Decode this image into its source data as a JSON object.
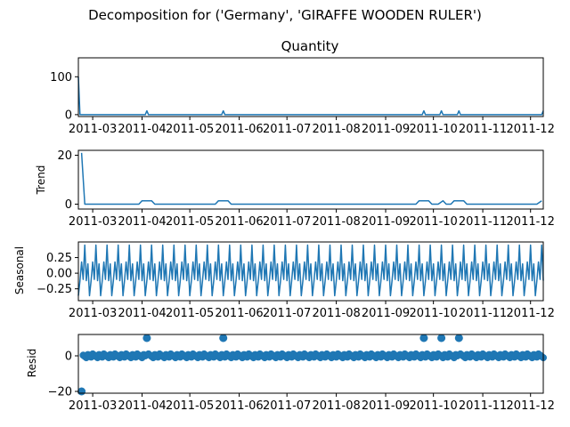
{
  "figure_title": "Decomposition for ('Germany', 'GIRAFFE WOODEN RULER')",
  "line_color": "#1f77b4",
  "x_tick_labels": [
    "2011-03",
    "2011-04",
    "2011-05",
    "2011-06",
    "2011-07",
    "2011-08",
    "2011-09",
    "2011-10",
    "2011-11",
    "2011-12"
  ],
  "chart_data": [
    {
      "type": "line",
      "title": "Quantity",
      "ylabel": "",
      "xlim": [
        "2011-02-20",
        "2011-12-09"
      ],
      "ylim": [
        -5,
        150
      ],
      "yticks": [
        0,
        100
      ],
      "grid": false,
      "series": [
        {
          "x": [
            "2011-02-20",
            "2011-02-21",
            "2011-02-22",
            "2011-04-03",
            "2011-04-04",
            "2011-04-05",
            "2011-05-21",
            "2011-05-22",
            "2011-05-23",
            "2011-09-24",
            "2011-09-25",
            "2011-09-26",
            "2011-10-05",
            "2011-10-06",
            "2011-10-07",
            "2011-10-16",
            "2011-10-17",
            "2011-10-18",
            "2011-12-08",
            "2011-12-09"
          ],
          "y": [
            100,
            0,
            0,
            0,
            10,
            0,
            0,
            10,
            0,
            0,
            10,
            0,
            0,
            10,
            0,
            0,
            10,
            0,
            0,
            10
          ]
        }
      ]
    },
    {
      "type": "line",
      "title": "",
      "ylabel": "Trend",
      "xlim": [
        "2011-02-20",
        "2011-12-09"
      ],
      "ylim": [
        -2,
        22
      ],
      "yticks": [
        0,
        20
      ],
      "grid": false,
      "series": [
        {
          "x": [
            "2011-02-22",
            "2011-02-24",
            "2011-03-30",
            "2011-04-01",
            "2011-04-07",
            "2011-04-09",
            "2011-05-17",
            "2011-05-19",
            "2011-05-25",
            "2011-05-27",
            "2011-09-20",
            "2011-09-22",
            "2011-09-28",
            "2011-09-30",
            "2011-10-04",
            "2011-10-07",
            "2011-10-09",
            "2011-10-12",
            "2011-10-14",
            "2011-10-20",
            "2011-10-22",
            "2011-12-05",
            "2011-12-08"
          ],
          "y": [
            21,
            0,
            0,
            1.4,
            1.4,
            0,
            0,
            1.4,
            1.4,
            0,
            0,
            1.4,
            1.4,
            0,
            0,
            1.4,
            0,
            0,
            1.4,
            1.4,
            0,
            0,
            1.4
          ]
        }
      ]
    },
    {
      "type": "line",
      "title": "",
      "ylabel": "Seasonal",
      "xlim": [
        "2011-02-20",
        "2011-12-09"
      ],
      "ylim": [
        -0.44,
        0.5
      ],
      "yticks": [
        0.25,
        0.0,
        -0.25
      ],
      "ytick_labels": [
        "0.25",
        "0.00",
        "−0.25"
      ],
      "grid": false,
      "period_days": 7,
      "series": [
        {
          "start": "2011-02-20",
          "end": "2011-12-09",
          "pattern": [
            -0.36,
            -0.12,
            0.18,
            -0.1,
            0.45,
            -0.12,
            0.15
          ]
        }
      ]
    },
    {
      "type": "scatter",
      "title": "",
      "ylabel": "Resid",
      "xlim": [
        "2011-02-20",
        "2011-12-09"
      ],
      "ylim": [
        -21,
        12
      ],
      "yticks": [
        0,
        -20
      ],
      "ytick_labels": [
        "0",
        "−20"
      ],
      "grid": false,
      "baseline": 0,
      "outliers": {
        "x": [
          "2011-02-22",
          "2011-04-04",
          "2011-05-22",
          "2011-09-25",
          "2011-10-06",
          "2011-10-17"
        ],
        "y": [
          -20,
          10,
          10,
          10,
          10,
          10
        ]
      }
    }
  ]
}
